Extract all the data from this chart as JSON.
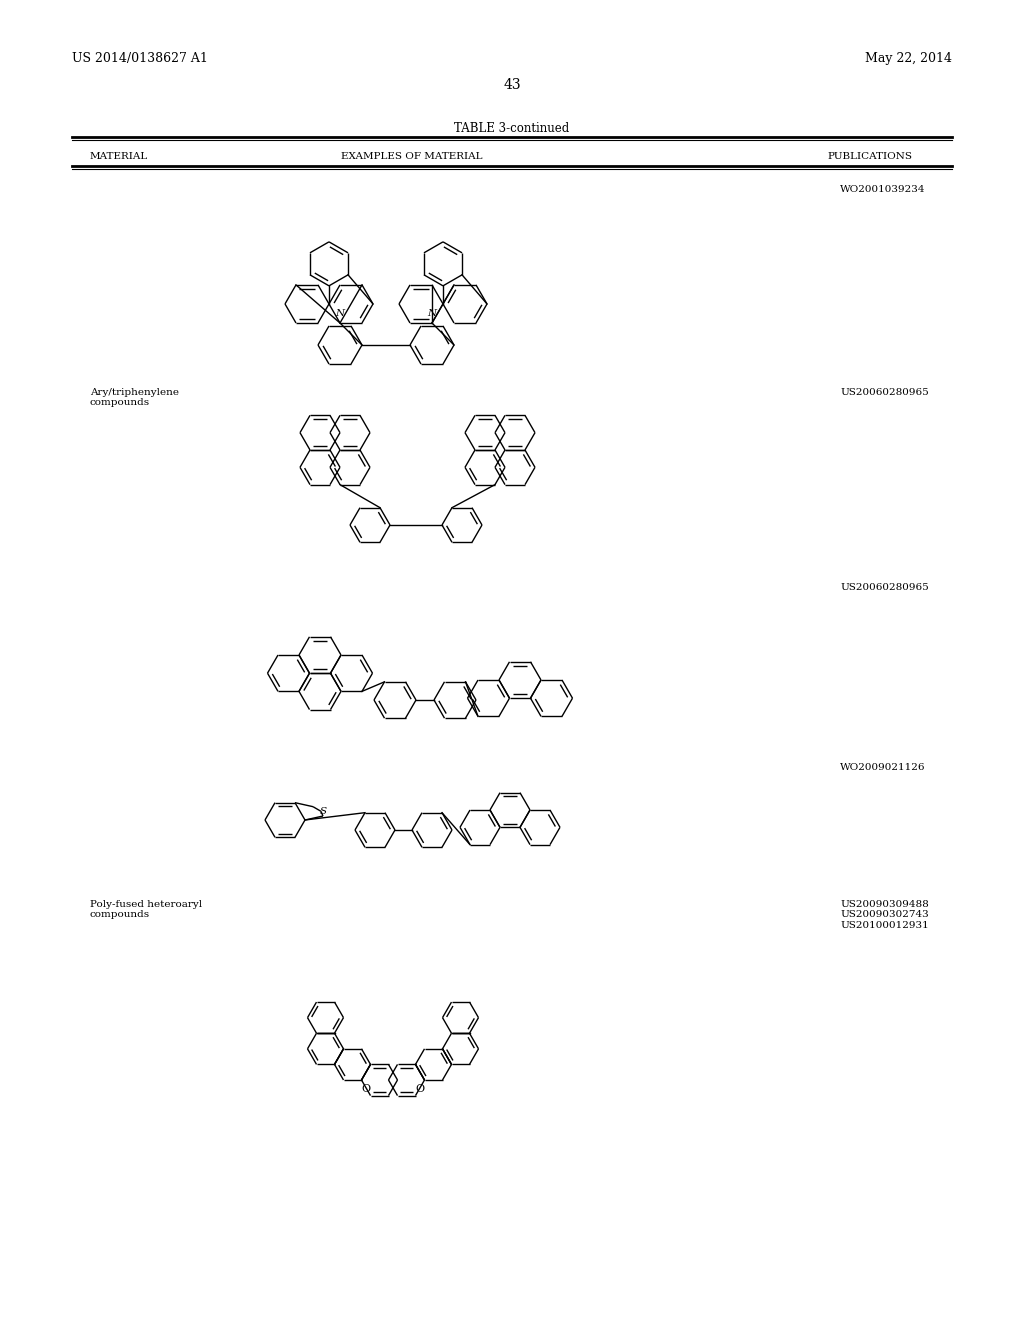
{
  "background_color": "#ffffff",
  "page_number": "43",
  "top_left_text": "US 2014/0138627 A1",
  "top_right_text": "May 22, 2014",
  "table_title": "TABLE 3-continued",
  "col1_header": "MATERIAL",
  "col2_header": "EXAMPLES OF MATERIAL",
  "col3_header": "PUBLICATIONS",
  "row1_pub": "WO2001039234",
  "row2_label": "Ary/triphenylene\ncompounds",
  "row2_pub": "US20060280965",
  "row3_pub": "US20060280965",
  "row4_pub": "WO2009021126",
  "row5_label": "Poly-fused heteroaryl\ncompounds",
  "row5_pub": "US20090309488\nUS20090302743\nUS20100012931",
  "text_color": "#000000",
  "line_color": "#000000"
}
